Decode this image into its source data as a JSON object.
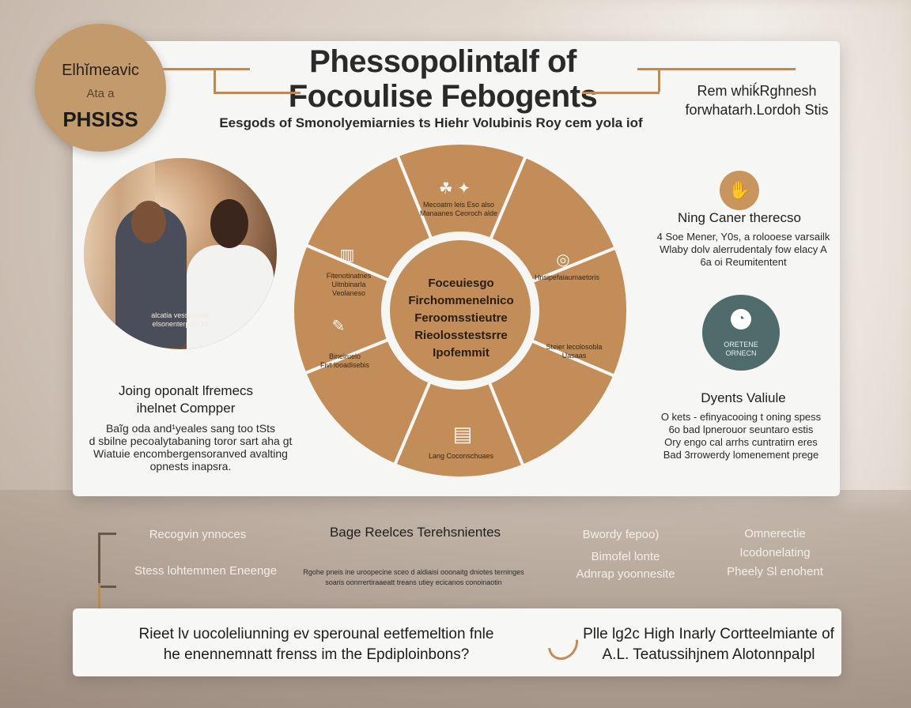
{
  "badge": {
    "line1": "Elhĭmeavic",
    "line2": "Ata a",
    "line3": "PHSISS"
  },
  "title": {
    "line1": "Phessopolintalf of",
    "line2": "Focoulise Febogents"
  },
  "subtitle": "Eesgods of Smonolyemiarnies ts Hiehr Volubinis Roy cem yola iof",
  "right_header": {
    "line1": "Rem whiḱRghnesh",
    "line2": "forwhatarh.Lordoh Stis"
  },
  "photo_caption": "alcatia vessiteneal\nelsonenterpaxt sa",
  "left_section": {
    "heading": "Joing oponalt lfremecs\nihelnet Compper",
    "body": "Baĩg oda and¹yeales sang too tSts\nd sbilne pecoalytabaning toror sart aha gt\nWiatuie encombergensoranved avalting\nopnests inapsra."
  },
  "wheel": {
    "center_text": "Foceuiesgo\nFirchommenelnico\nFeroomsstieutre\nRieolosstestsrre\nIpofemmit",
    "color_outer": "#c28d58",
    "color_ring": "#f6f6f4",
    "segments": [
      {
        "icon": "people-icon",
        "glyph": "☘ ✦",
        "label": "Mecoatm leis Eso also\nManaanes Ceoroch alde"
      },
      {
        "icon": "target-icon",
        "glyph": "◎",
        "label": "Hnsipefaiaumaetoris"
      },
      {
        "icon": "chart-icon",
        "glyph": "",
        "label": "Steier lecolosobla\nUasaas"
      },
      {
        "icon": "folder-icon",
        "glyph": "▤",
        "label": "Lang Coconschuaes"
      },
      {
        "icon": "hand-icon",
        "glyph": "✎",
        "label": "Bineiruelo\nFivt looadisebis"
      },
      {
        "icon": "building-icon",
        "glyph": "▥",
        "label": "Fitenotinatnes\nUitnbinarla\nVeolaneso"
      }
    ]
  },
  "right_section_1": {
    "icon": "hand-icon",
    "heading": "Ning Caner therecso",
    "body": "4 Soe Mener, Y0s, a rolooese varsailk\nWlaby dolv alerrudentaly fow elacy A\n6a oi Reumitentent"
  },
  "right_section_2": {
    "circle_text": "ORETENE\nORNECN",
    "heading": "Dyents Valiule",
    "body": "O kets - efinyacooing t oning spess\n6o bad lpnerouor seuntaro estis\nOry engo cal arrhs cuntratirn eres\nBad 3rrowerdy lomenement prege"
  },
  "bottom_band": {
    "left_label_1": "Recogvin ynnoces",
    "left_label_2": "Stess lohtemmen Eneenge",
    "middle_heading": "Bage Reelces Terehsnientes",
    "middle_body": "Rgohe pneis ine uroopecine sceo d aldiaisi ooonaitg dniotes terninges\nsoaris oonrrertiraaeatt treans utiey ecicanos conoinaotin",
    "right_label_1": "Bwordy fepoo)",
    "right_label_2": "Bimofel lonte\nAdnrap yoonnesite",
    "far_right": "Omnerectie\nIcodonelating\nPheely Sl enohent"
  },
  "bottom_bar": {
    "left": "Rieet lv uocoleliunning ev sperounal eetfemeltion fnle\nhe enennemnatt frenss im the Epdiploinbons?",
    "right": "Plle lg2c High Inarly Cortteelmiante of\nA.L. Teatussihjnem Alotonnpalpl"
  }
}
